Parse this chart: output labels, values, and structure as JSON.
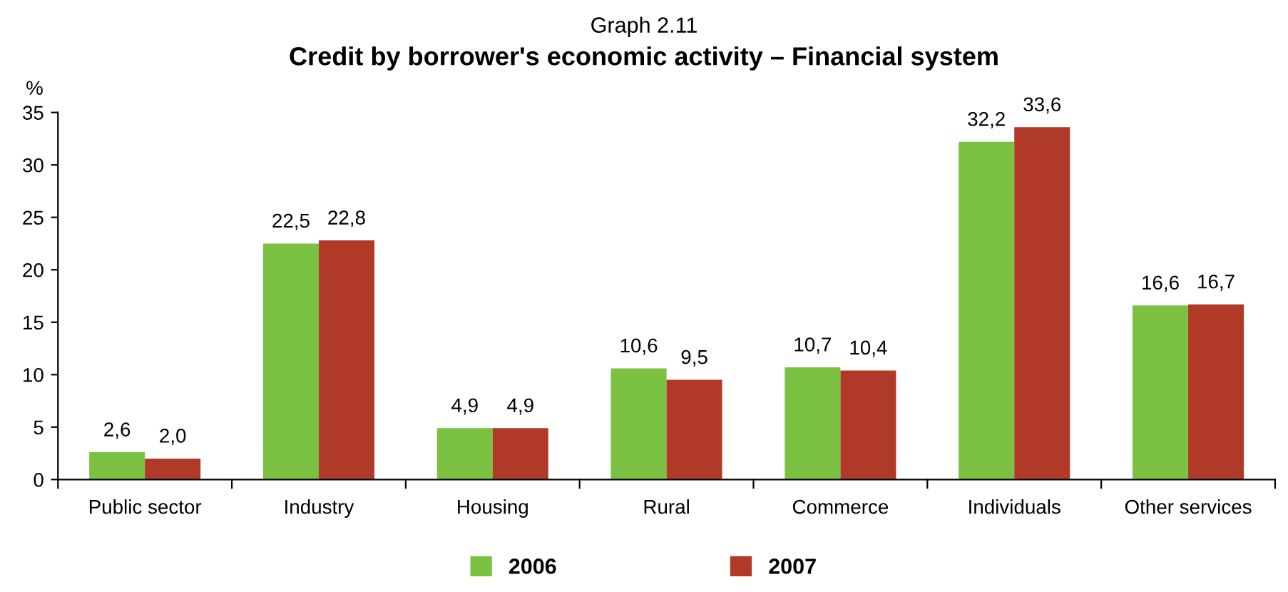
{
  "chart_data": {
    "type": "bar",
    "subtitle": "Graph 2.11",
    "title": "Credit by borrower's economic activity – Financial system",
    "ylabel": "%",
    "categories": [
      "Public sector",
      "Industry",
      "Housing",
      "Rural",
      "Commerce",
      "Individuals",
      "Other services"
    ],
    "series": [
      {
        "name": "2006",
        "color": "#7cc242",
        "values": [
          2.6,
          22.5,
          4.9,
          10.6,
          10.7,
          32.2,
          16.6
        ],
        "value_labels": [
          "2,6",
          "22,5",
          "4,9",
          "10,6",
          "10,7",
          "32,2",
          "16,6"
        ]
      },
      {
        "name": "2007",
        "color": "#b03a27",
        "values": [
          2.0,
          22.8,
          4.9,
          9.5,
          10.4,
          33.6,
          16.7
        ],
        "value_labels": [
          "2,0",
          "22,8",
          "4,9",
          "9,5",
          "10,4",
          "33,6",
          "16,7"
        ]
      }
    ],
    "ylim": [
      0,
      35
    ],
    "yticks": [
      0,
      5,
      10,
      15,
      20,
      25,
      30,
      35
    ],
    "grid": false,
    "legend": "bottom"
  }
}
